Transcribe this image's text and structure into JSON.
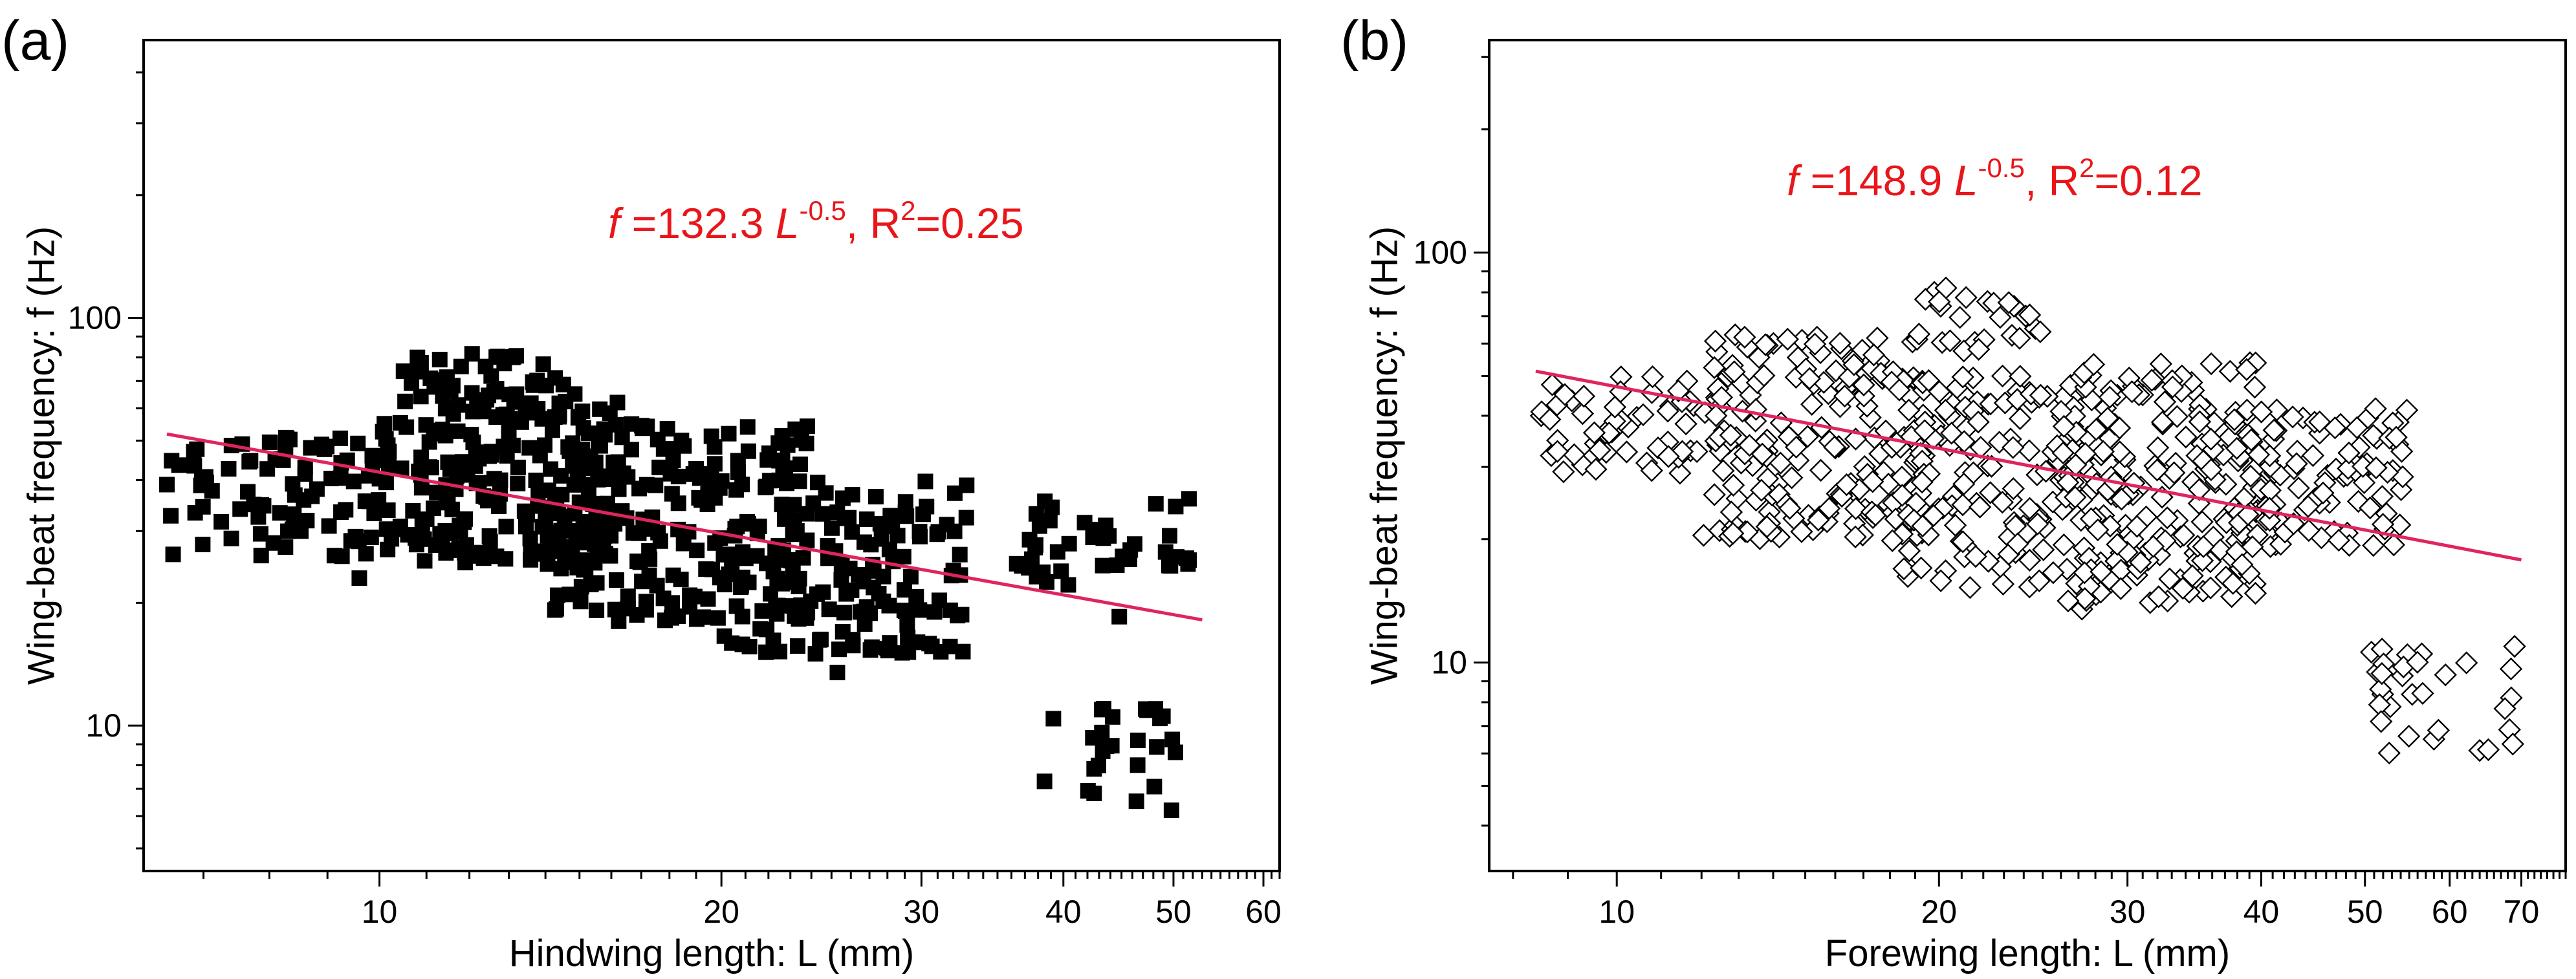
{
  "panels": [
    {
      "label": "(a)",
      "equation": {
        "f": "f",
        "main": " =132.3 ",
        "L": "L",
        "exp": "-0.5",
        "sep": ",  R",
        "r2exp": "2",
        "r2val": "=0.25"
      }
    },
    {
      "label": "(b)",
      "equation": {
        "f": "f",
        "main": " =148.9 ",
        "L": "L",
        "exp": "-0.5",
        "sep": ",  R",
        "r2exp": "2",
        "r2val": "=0.12"
      }
    }
  ],
  "chart_data": [
    {
      "type": "scatter",
      "panel": "(a)",
      "xlabel": "Hindwing length: L (mm)",
      "ylabel": "Wing-beat frequency: f (Hz)",
      "x_scale": "log",
      "y_scale": "log",
      "xlim": [
        6.2,
        62
      ],
      "ylim": [
        4.4,
        480
      ],
      "x_tick_labels": [
        10,
        20,
        30,
        40,
        50,
        60
      ],
      "y_tick_labels": [
        10,
        100
      ],
      "marker": "filled-square",
      "marker_color": "#000000",
      "fit": {
        "name": "f =132.3 L^-0.5, R2=0.25",
        "coef": 132.3,
        "exponent": -0.5,
        "R2": 0.25,
        "color": "#e0245e",
        "x_range": [
          6.5,
          53
        ]
      },
      "clusters": [
        {
          "x_range": [
            6.5,
            12
          ],
          "y_range": [
            26,
            52
          ],
          "n": 110
        },
        {
          "x_range": [
            10,
            16
          ],
          "y_range": [
            25,
            72
          ],
          "n": 170
        },
        {
          "x_range": [
            10.5,
            14
          ],
          "y_range": [
            55,
            82
          ],
          "n": 30
        },
        {
          "x_range": [
            14,
            24
          ],
          "y_range": [
            18,
            55
          ],
          "n": 180
        },
        {
          "x_range": [
            20,
            33
          ],
          "y_range": [
            15,
            40
          ],
          "n": 150
        },
        {
          "x_range": [
            36,
            52
          ],
          "y_range": [
            22,
            36
          ],
          "n": 40
        },
        {
          "x_range": [
            42,
            51
          ],
          "y_range": [
            6.5,
            11
          ],
          "n": 20
        }
      ],
      "points": [
        [
          6.5,
          39
        ],
        [
          8.7,
          48
        ],
        [
          9.6,
          23
        ],
        [
          10.1,
          55
        ],
        [
          10.5,
          74
        ],
        [
          10.8,
          80
        ],
        [
          11.3,
          79
        ],
        [
          11.8,
          76
        ],
        [
          12.4,
          76
        ],
        [
          13.1,
          80
        ],
        [
          14.4,
          58
        ],
        [
          16.2,
          62
        ],
        [
          18.1,
          20
        ],
        [
          20.3,
          52
        ],
        [
          24.2,
          15
        ],
        [
          25.3,
          13.5
        ],
        [
          26.5,
          19
        ],
        [
          30.8,
          19
        ],
        [
          32.0,
          24
        ],
        [
          38.5,
          7.3
        ],
        [
          39.2,
          10.4
        ],
        [
          43.4,
          11
        ],
        [
          44.2,
          10.5
        ],
        [
          44.8,
          18.5
        ],
        [
          45.1,
          26
        ],
        [
          46.5,
          8
        ],
        [
          49.8,
          6.2
        ],
        [
          50.2,
          8.6
        ],
        [
          51.6,
          36
        ]
      ]
    },
    {
      "type": "scatter",
      "panel": "(b)",
      "xlabel": "Forewing length: L (mm)",
      "ylabel": "Wing-beat frequency: f (Hz)",
      "x_scale": "log",
      "y_scale": "log",
      "xlim": [
        7.6,
        77
      ],
      "ylim": [
        3.1,
        330
      ],
      "x_tick_labels": [
        10,
        20,
        30,
        40,
        50,
        60,
        70
      ],
      "y_tick_labels": [
        10,
        100
      ],
      "marker": "open-diamond",
      "marker_color": "#000000",
      "fit": {
        "name": "f =148.9 L^-0.5, R2=0.12",
        "coef": 148.9,
        "exponent": -0.5,
        "R2": 0.12,
        "color": "#e0245e",
        "x_range": [
          8.4,
          70
        ]
      },
      "clusters": [
        {
          "x_range": [
            8.4,
            13
          ],
          "y_range": [
            28,
            50
          ],
          "n": 60
        },
        {
          "x_range": [
            12,
            20
          ],
          "y_range": [
            20,
            63
          ],
          "n": 190
        },
        {
          "x_range": [
            19,
            25
          ],
          "y_range": [
            55,
            82
          ],
          "n": 20
        },
        {
          "x_range": [
            18,
            30
          ],
          "y_range": [
            15,
            50
          ],
          "n": 170
        },
        {
          "x_range": [
            26,
            40
          ],
          "y_range": [
            14,
            55
          ],
          "n": 160
        },
        {
          "x_range": [
            35,
            55
          ],
          "y_range": [
            19,
            42
          ],
          "n": 120
        },
        {
          "x_range": [
            51,
            69
          ],
          "y_range": [
            6,
            11
          ],
          "n": 25
        }
      ],
      "points": [
        [
          8.5,
          40
        ],
        [
          12.9,
          63
        ],
        [
          15.5,
          57
        ],
        [
          19.8,
          80
        ],
        [
          20.3,
          82
        ],
        [
          22.2,
          76
        ],
        [
          23.5,
          74
        ],
        [
          24.1,
          70
        ],
        [
          27.2,
          13.5
        ],
        [
          31.5,
          14
        ],
        [
          38.2,
          17
        ],
        [
          50.7,
          10.6
        ],
        [
          52.8,
          7.8
        ],
        [
          56.5,
          10.5
        ],
        [
          58.0,
          6.5
        ],
        [
          64.0,
          6.1
        ],
        [
          68.5,
          8.2
        ]
      ]
    }
  ]
}
